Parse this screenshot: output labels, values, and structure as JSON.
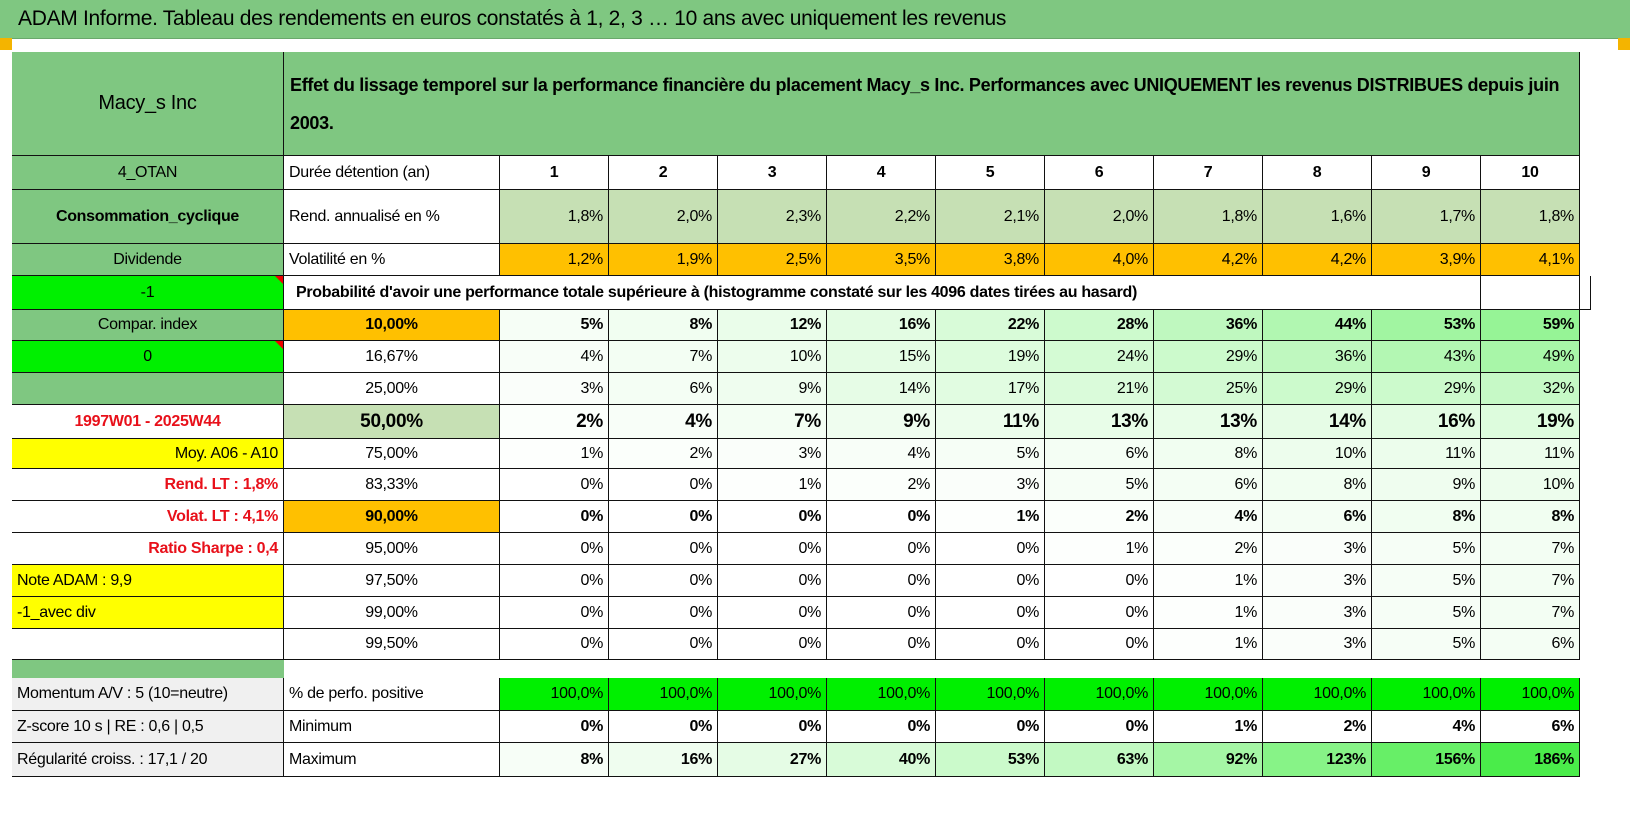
{
  "title": "ADAM Informe. Tableau des rendements en euros constatés à 1, 2, 3 … 10 ans avec uniquement les revenus",
  "header": {
    "name": "Macy_s Inc",
    "description": "Effet du lissage temporel sur la performance financière du placement Macy_s Inc. Performances avec UNIQUEMENT les revenus DISTRIBUES depuis juin 2003."
  },
  "left": {
    "code": "4_OTAN",
    "sector": "Consommation_cyclique",
    "type": "Dividende",
    "flag1": "-1",
    "compar": "Compar. index",
    "flag2": "0",
    "period": "1997W01 - 2025W44",
    "moy": "Moy. A06 - A10",
    "rend_lt": "Rend. LT :   1,8%",
    "volat_lt": "Volat. LT :   4,1%",
    "sharpe": "Ratio Sharpe :    0,4",
    "note": "Note ADAM : 9,9",
    "avec_div": "-1_avec div",
    "momentum": "Momentum A/V : 5 (10=neutre)",
    "zscore": "Z-score 10 s | RE : 0,6 | 0,5",
    "regularite": "Régularité croiss. : 17,1 / 20"
  },
  "labels": {
    "duree": "Durée détention (an)",
    "rend": "Rend. annualisé en %",
    "vol": "Volatilité en %",
    "prob": "Probabilité d'avoir une performance totale supérieure à (histogramme constaté sur les 4096 dates tirées au hasard)",
    "positive": "% de perfo. positive",
    "minimum": "Minimum",
    "maximum": "Maximum"
  },
  "years": [
    "1",
    "2",
    "3",
    "4",
    "5",
    "6",
    "7",
    "8",
    "9",
    "10"
  ],
  "rend": [
    "1,8%",
    "2,0%",
    "2,3%",
    "2,2%",
    "2,1%",
    "2,0%",
    "1,8%",
    "1,6%",
    "1,7%",
    "1,8%"
  ],
  "vol": [
    "1,2%",
    "1,9%",
    "2,5%",
    "3,5%",
    "3,8%",
    "4,0%",
    "4,2%",
    "4,2%",
    "3,9%",
    "4,1%"
  ],
  "thresholds": [
    {
      "label": "10,00%",
      "values": [
        "5%",
        "8%",
        "12%",
        "16%",
        "22%",
        "28%",
        "36%",
        "44%",
        "53%",
        "59%"
      ]
    },
    {
      "label": "16,67%",
      "values": [
        "4%",
        "7%",
        "10%",
        "15%",
        "19%",
        "24%",
        "29%",
        "36%",
        "43%",
        "49%"
      ]
    },
    {
      "label": "25,00%",
      "values": [
        "3%",
        "6%",
        "9%",
        "14%",
        "17%",
        "21%",
        "25%",
        "29%",
        "29%",
        "32%"
      ]
    },
    {
      "label": "50,00%",
      "values": [
        "2%",
        "4%",
        "7%",
        "9%",
        "11%",
        "13%",
        "13%",
        "14%",
        "16%",
        "19%"
      ]
    },
    {
      "label": "75,00%",
      "values": [
        "1%",
        "2%",
        "3%",
        "4%",
        "5%",
        "6%",
        "8%",
        "10%",
        "11%",
        "11%"
      ]
    },
    {
      "label": "83,33%",
      "values": [
        "0%",
        "0%",
        "1%",
        "2%",
        "3%",
        "5%",
        "6%",
        "8%",
        "9%",
        "10%"
      ]
    },
    {
      "label": "90,00%",
      "values": [
        "0%",
        "0%",
        "0%",
        "0%",
        "1%",
        "2%",
        "4%",
        "6%",
        "8%",
        "8%"
      ]
    },
    {
      "label": "95,00%",
      "values": [
        "0%",
        "0%",
        "0%",
        "0%",
        "0%",
        "1%",
        "2%",
        "3%",
        "5%",
        "7%"
      ]
    },
    {
      "label": "97,50%",
      "values": [
        "0%",
        "0%",
        "0%",
        "0%",
        "0%",
        "0%",
        "1%",
        "3%",
        "5%",
        "7%"
      ]
    },
    {
      "label": "99,00%",
      "values": [
        "0%",
        "0%",
        "0%",
        "0%",
        "0%",
        "0%",
        "1%",
        "3%",
        "5%",
        "7%"
      ]
    },
    {
      "label": "99,50%",
      "values": [
        "0%",
        "0%",
        "0%",
        "0%",
        "0%",
        "0%",
        "1%",
        "3%",
        "5%",
        "6%"
      ]
    }
  ],
  "positive": [
    "100,0%",
    "100,0%",
    "100,0%",
    "100,0%",
    "100,0%",
    "100,0%",
    "100,0%",
    "100,0%",
    "100,0%",
    "100,0%"
  ],
  "minimum": [
    "0%",
    "0%",
    "0%",
    "0%",
    "0%",
    "0%",
    "1%",
    "2%",
    "4%",
    "6%"
  ],
  "maximum": [
    "8%",
    "16%",
    "27%",
    "40%",
    "53%",
    "63%",
    "92%",
    "123%",
    "156%",
    "186%"
  ],
  "colors": {
    "header_green": "#7fc781",
    "bright_green": "#00f000",
    "orange": "#ffc000",
    "yellow": "#ffff00",
    "red": "#e8101a"
  }
}
